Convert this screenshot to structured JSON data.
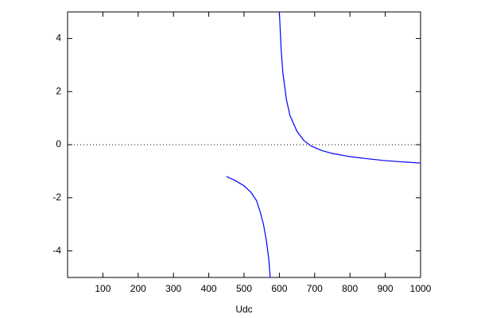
{
  "chart_data": {
    "type": "line",
    "xlabel": "Udc",
    "xlim": [
      0,
      1000
    ],
    "xticks": [
      100,
      200,
      300,
      400,
      500,
      600,
      700,
      800,
      900,
      1000
    ],
    "ylim": [
      -5,
      5
    ],
    "yticks": [
      -4,
      -2,
      0,
      2,
      4
    ],
    "zeroaxis": true,
    "series": [
      {
        "color": "#0000ff",
        "x": [
          450,
          475,
          500,
          520,
          535,
          545,
          555,
          563,
          570,
          574
        ],
        "values": [
          -1.2,
          -1.35,
          -1.55,
          -1.8,
          -2.1,
          -2.5,
          -3.0,
          -3.6,
          -4.3,
          -5.0
        ]
      },
      {
        "color": "#0000ff",
        "x": [
          600,
          605,
          610,
          620,
          630,
          650,
          670,
          690,
          720,
          750,
          800,
          850,
          900,
          950,
          1000
        ],
        "values": [
          5.0,
          3.6,
          2.7,
          1.7,
          1.1,
          0.5,
          0.15,
          -0.05,
          -0.22,
          -0.33,
          -0.45,
          -0.53,
          -0.6,
          -0.65,
          -0.69
        ]
      }
    ]
  }
}
